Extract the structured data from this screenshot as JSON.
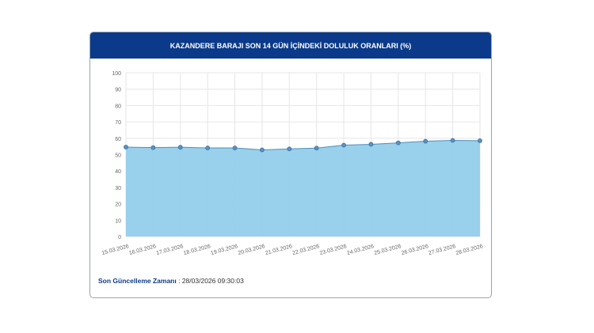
{
  "title": "KAZANDERE BARAJI SON 14 GÜN İÇİNDEKİ DOLULUK ORANLARI (%)",
  "update_label": "Son Güncelleme Zamanı",
  "update_value": ": 28/03/2026 09:30:03",
  "chart_data": {
    "type": "area",
    "title": "KAZANDERE BARAJI SON 14 GÜN İÇİNDEKİ DOLULUK ORANLARI (%)",
    "categories": [
      "15.03.2026",
      "16.03.2026",
      "17.03.2026",
      "18.03.2026",
      "19.03.2026",
      "20.03.2026",
      "21.03.2026",
      "22.03.2026",
      "23.03.2026",
      "24.03.2026",
      "25.03.2026",
      "26.03.2026",
      "27.03.2026",
      "28.03.2026"
    ],
    "values": [
      54.6,
      54.3,
      54.5,
      54.1,
      54.1,
      52.9,
      53.5,
      54.0,
      55.8,
      56.3,
      57.2,
      58.2,
      58.7,
      58.5
    ],
    "ylim": [
      0,
      100
    ],
    "yticks": [
      "0",
      "10",
      "20",
      "30",
      "40",
      "50",
      "60",
      "70",
      "80",
      "90",
      "100"
    ],
    "grid": true,
    "colors": {
      "fill": "#93cdeb",
      "line": "#4f8fb8",
      "point": "#5b93c4"
    }
  }
}
